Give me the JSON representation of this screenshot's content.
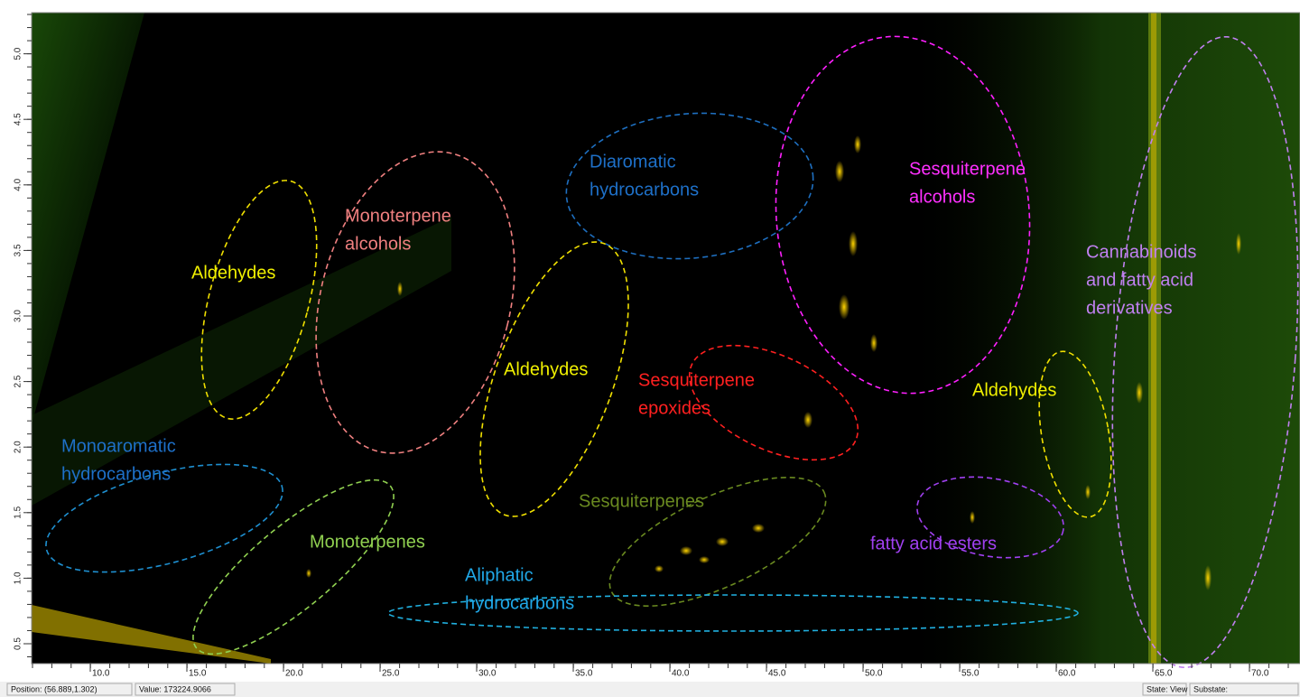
{
  "plot": {
    "x_ticks": [
      "10.0",
      "15.0",
      "20.0",
      "25.0",
      "30.0",
      "35.0",
      "40.0",
      "45.0",
      "50.0",
      "55.0",
      "60.0",
      "65.0",
      "70.0"
    ],
    "y_ticks": [
      "0.5",
      "1.0",
      "1.5",
      "2.0",
      "2.5",
      "3.0",
      "3.5",
      "4.0",
      "4.5",
      "5.0"
    ]
  },
  "regions": [
    {
      "lines": [
        "Aldehydes"
      ]
    },
    {
      "lines": [
        "Monoterpene",
        "alcohols"
      ]
    },
    {
      "lines": [
        "Diaromatic",
        "hydrocarbons"
      ]
    },
    {
      "lines": [
        "Aldehydes"
      ]
    },
    {
      "lines": [
        "Sesquiterpene",
        "alcohols"
      ]
    },
    {
      "lines": [
        "Sesquiterpene",
        "epoxides"
      ]
    },
    {
      "lines": [
        "Monoaromatic",
        "hydrocarbons"
      ]
    },
    {
      "lines": [
        "Monoterpenes"
      ]
    },
    {
      "lines": [
        "Sesquiterpenes"
      ]
    },
    {
      "lines": [
        "Aliphatic",
        "hydrocarbons"
      ]
    },
    {
      "lines": [
        "fatty acid esters"
      ]
    },
    {
      "lines": [
        "Aldehydes"
      ]
    },
    {
      "lines": [
        "Cannabinoids",
        "and fatty acid",
        "derivatives"
      ]
    }
  ],
  "status_bar": {
    "position": "Position: (56.889,1.302)",
    "value": "Value: 173224.9066",
    "state": "State: View",
    "substate": "Substate:"
  }
}
